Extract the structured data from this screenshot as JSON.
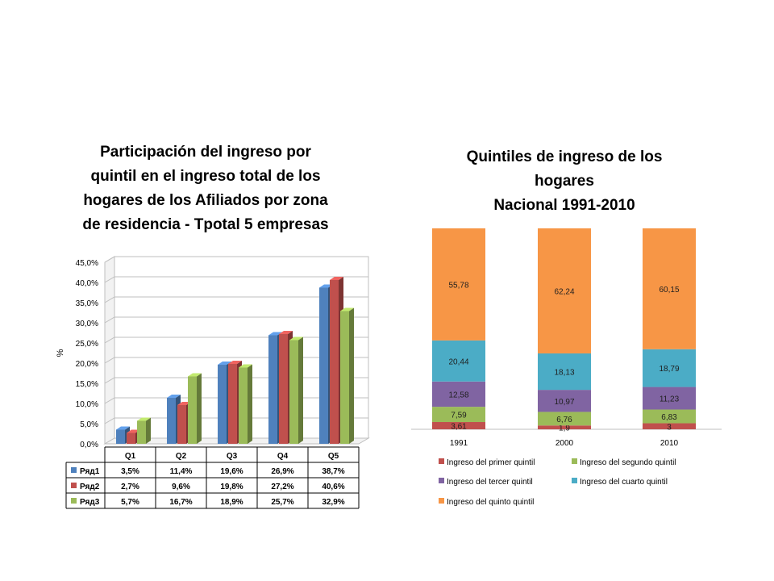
{
  "chart_data": [
    {
      "type": "bar",
      "title_lines": [
        "Participación del ingreso por",
        "quintil en el ingreso total de los",
        "hogares de los Afiliados por zona",
        "de residencia - Tpotal 5 empresas"
      ],
      "ylabel": "%",
      "ylim": [
        0,
        45
      ],
      "yticks": [
        "0,0%",
        "5,0%",
        "10,0%",
        "15,0%",
        "20,0%",
        "25,0%",
        "30,0%",
        "35,0%",
        "40,0%",
        "45,0%"
      ],
      "categories": [
        "Q1",
        "Q2",
        "Q3",
        "Q4",
        "Q5"
      ],
      "series": [
        {
          "name": "Ряд1",
          "color": "#4F81BD",
          "values": [
            3.5,
            11.4,
            19.6,
            26.9,
            38.7
          ],
          "labels": [
            "3,5%",
            "11,4%",
            "19,6%",
            "26,9%",
            "38,7%"
          ]
        },
        {
          "name": "Ряд2",
          "color": "#C0504D",
          "values": [
            2.7,
            9.6,
            19.8,
            27.2,
            40.6
          ],
          "labels": [
            "2,7%",
            "9,6%",
            "19,8%",
            "27,2%",
            "40,6%"
          ]
        },
        {
          "name": "Ряд3",
          "color": "#9BBB59",
          "values": [
            5.7,
            16.7,
            18.9,
            25.7,
            32.9
          ],
          "labels": [
            "5,7%",
            "16,7%",
            "18,9%",
            "25,7%",
            "32,9%"
          ]
        }
      ],
      "grid": true,
      "legend": "data-table"
    },
    {
      "type": "bar",
      "stacked": true,
      "title_lines": [
        "Quintiles de ingreso de los",
        "hogares",
        "Nacional 1991-2010"
      ],
      "categories": [
        "1991",
        "2000",
        "2010"
      ],
      "series": [
        {
          "name": "Ingreso del primer quintil",
          "color": "#C0504D",
          "values": [
            3.61,
            1.9,
            3
          ],
          "labels": [
            "3,61",
            "1,9",
            "3"
          ]
        },
        {
          "name": "Ingreso del segundo quintil",
          "color": "#9BBB59",
          "values": [
            7.59,
            6.76,
            6.83
          ],
          "labels": [
            "7,59",
            "6,76",
            "6,83"
          ]
        },
        {
          "name": "Ingreso del tercer quintil",
          "color": "#8064A2",
          "values": [
            12.58,
            10.97,
            11.23
          ],
          "labels": [
            "12,58",
            "10,97",
            "11,23"
          ]
        },
        {
          "name": "Ingreso del cuarto quintil",
          "color": "#4BACC6",
          "values": [
            20.44,
            18.13,
            18.79
          ],
          "labels": [
            "20,44",
            "18,13",
            "18,79"
          ]
        },
        {
          "name": "Ingreso del quinto quintil",
          "color": "#F79646",
          "values": [
            55.78,
            62.24,
            60.15
          ],
          "labels": [
            "55,78",
            "62,24",
            "60,15"
          ]
        }
      ],
      "legend": "bottom"
    }
  ]
}
